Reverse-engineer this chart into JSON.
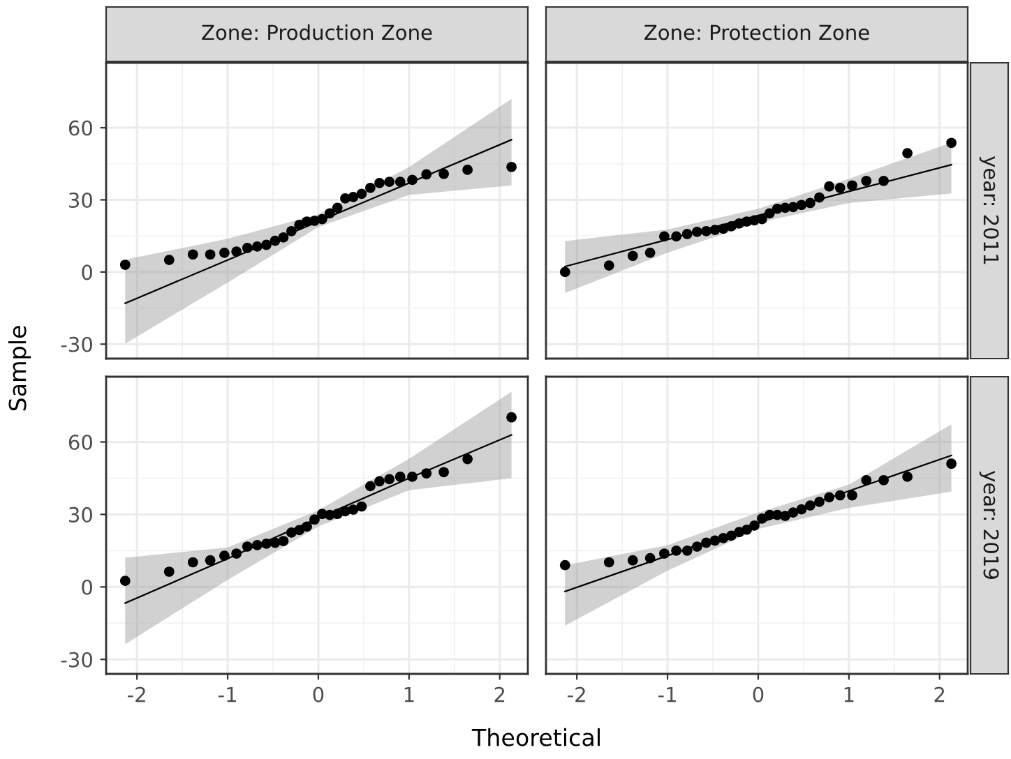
{
  "chart_data": [
    {
      "type": "scatter",
      "title": "Zone: Production Zone",
      "ylabel": "Sample",
      "xlim": [
        -2.34,
        2.31
      ],
      "ylim": [
        -36,
        87
      ],
      "xticks": [
        -2,
        -1,
        0,
        1,
        2
      ],
      "yticks": [
        -30,
        0,
        30,
        60
      ],
      "grid": true,
      "tick_labels": "y",
      "x": [
        -2.13,
        -1.645,
        -1.383,
        -1.192,
        -1.036,
        -0.903,
        -0.783,
        -0.674,
        -0.573,
        -0.477,
        -0.385,
        -0.297,
        -0.21,
        -0.126,
        -0.042,
        0.042,
        0.126,
        0.21,
        0.297,
        0.385,
        0.477,
        0.573,
        0.674,
        0.783,
        0.903,
        1.036,
        1.192,
        1.383,
        1.645,
        2.13
      ],
      "series": [
        {
          "marker": "circle",
          "color": "#000000",
          "values": [
            3,
            5,
            7.3,
            7.3,
            8,
            8.5,
            10,
            10.6,
            11.3,
            13,
            14.4,
            17,
            19.6,
            21,
            21.3,
            22,
            24.4,
            26.7,
            30.6,
            31.2,
            32.5,
            35,
            37,
            37.5,
            37.5,
            38.3,
            40.6,
            40.8,
            42.5,
            43.7
          ]
        },
        {
          "type": "line",
          "color": "#000000",
          "x": [
            -2.13,
            -1,
            0,
            1,
            2.13
          ],
          "values": [
            -13,
            5,
            21,
            37,
            55
          ],
          "lower": [
            -29.8,
            -4.4,
            18.7,
            32,
            36
          ],
          "upper": [
            5.2,
            13.8,
            24,
            43.6,
            72
          ]
        }
      ]
    },
    {
      "type": "scatter",
      "title": "Zone: Protection Zone",
      "y2label": "year: 2011",
      "xlim": [
        -2.34,
        2.31
      ],
      "ylim": [
        -36,
        87
      ],
      "xticks": [
        -2,
        -1,
        0,
        1,
        2
      ],
      "yticks": [
        -30,
        0,
        30,
        60
      ],
      "grid": true,
      "tick_labels": false,
      "x": [
        -2.13,
        -1.645,
        -1.383,
        -1.192,
        -1.036,
        -0.903,
        -0.783,
        -0.674,
        -0.573,
        -0.477,
        -0.385,
        -0.297,
        -0.21,
        -0.126,
        -0.042,
        0.042,
        0.126,
        0.21,
        0.297,
        0.385,
        0.477,
        0.573,
        0.674,
        0.783,
        0.903,
        1.036,
        1.192,
        1.383,
        1.645,
        2.13
      ],
      "series": [
        {
          "marker": "circle",
          "color": "#000000",
          "values": [
            0,
            2.7,
            6.7,
            8,
            14.8,
            14.8,
            15.8,
            16.7,
            17,
            17.5,
            18,
            19,
            20.2,
            21,
            21.5,
            22,
            24.4,
            26.3,
            26.7,
            27,
            27.9,
            28.7,
            31,
            35.6,
            35,
            36,
            37.9,
            37.9,
            49.4,
            53.7
          ]
        },
        {
          "type": "line",
          "color": "#000000",
          "x": [
            -2.13,
            -1,
            0,
            1,
            2.13
          ],
          "values": [
            2.3,
            13.5,
            23.5,
            33.5,
            44.6
          ],
          "lower": [
            -8.7,
            8,
            20.6,
            28.7,
            32.7
          ],
          "upper": [
            12.9,
            17.7,
            26.3,
            38.8,
            53.8
          ]
        }
      ]
    },
    {
      "type": "scatter",
      "xlabel": "Theoretical",
      "xlim": [
        -2.34,
        2.31
      ],
      "ylim": [
        -36,
        87
      ],
      "xticks": [
        -2,
        -1,
        0,
        1,
        2
      ],
      "yticks": [
        -30,
        0,
        30,
        60
      ],
      "grid": true,
      "x": [
        -2.13,
        -1.645,
        -1.383,
        -1.192,
        -1.036,
        -0.903,
        -0.783,
        -0.674,
        -0.573,
        -0.477,
        -0.385,
        -0.297,
        -0.21,
        -0.126,
        -0.042,
        0.042,
        0.126,
        0.21,
        0.297,
        0.385,
        0.477,
        0.573,
        0.674,
        0.783,
        0.903,
        1.036,
        1.192,
        1.383,
        1.645,
        2.13
      ],
      "series": [
        {
          "marker": "circle",
          "color": "#000000",
          "values": [
            2.5,
            6.3,
            10.2,
            11,
            12.9,
            13.8,
            16.7,
            17.3,
            17.9,
            18.3,
            19,
            22.5,
            23.5,
            25,
            27.9,
            30.2,
            29.8,
            30.2,
            31.3,
            32,
            33.3,
            41.7,
            43.7,
            44.6,
            45.6,
            45.6,
            47,
            47.5,
            52.9,
            70.2
          ]
        },
        {
          "type": "line",
          "color": "#000000",
          "x": [
            -2.13,
            -1,
            0,
            1,
            2.13
          ],
          "values": [
            -6.7,
            11.7,
            28.5,
            45,
            62.9
          ],
          "lower": [
            -23.7,
            2.9,
            25,
            40,
            45
          ],
          "upper": [
            12.1,
            16.3,
            31.7,
            53,
            80.8
          ]
        }
      ]
    },
    {
      "type": "scatter",
      "y2label": "year: 2019",
      "xlim": [
        -2.34,
        2.31
      ],
      "ylim": [
        -36,
        87
      ],
      "xticks": [
        -2,
        -1,
        0,
        1,
        2
      ],
      "yticks": [
        -30,
        0,
        30,
        60
      ],
      "grid": true,
      "tick_labels": "x",
      "x": [
        -2.13,
        -1.645,
        -1.383,
        -1.192,
        -1.036,
        -0.903,
        -0.783,
        -0.674,
        -0.573,
        -0.477,
        -0.385,
        -0.297,
        -0.21,
        -0.126,
        -0.042,
        0.042,
        0.126,
        0.21,
        0.297,
        0.385,
        0.477,
        0.573,
        0.674,
        0.783,
        0.903,
        1.036,
        1.192,
        1.383,
        1.645,
        2.13
      ],
      "series": [
        {
          "marker": "circle",
          "color": "#000000",
          "values": [
            9,
            10.2,
            11,
            11.9,
            13.8,
            15,
            15,
            16.7,
            18.3,
            19.2,
            20.2,
            21.2,
            22.7,
            23.7,
            25.4,
            28.3,
            29.8,
            29.8,
            29.4,
            30.8,
            32.1,
            33.7,
            35.2,
            37.1,
            37.9,
            37.9,
            44.2,
            44.2,
            45.6,
            51
          ]
        },
        {
          "type": "line",
          "color": "#000000",
          "x": [
            -2.13,
            -1,
            0,
            1,
            2.13
          ],
          "values": [
            -1.9,
            12.9,
            26.3,
            39.7,
            54.4
          ],
          "lower": [
            -16,
            6.7,
            24,
            32.7,
            39.4
          ],
          "upper": [
            9,
            17.3,
            30.8,
            42.3,
            67.3
          ]
        }
      ]
    }
  ]
}
